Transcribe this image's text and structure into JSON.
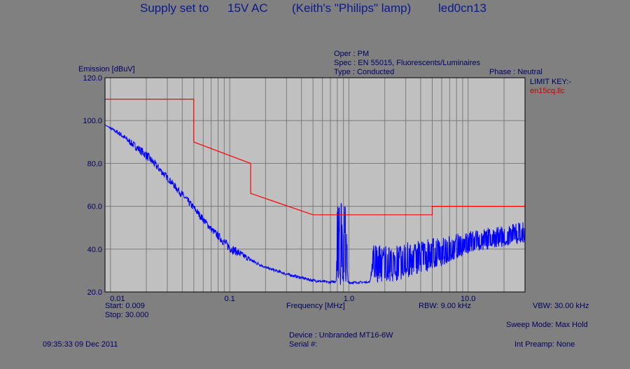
{
  "title_parts": [
    "Supply set to",
    "15V AC",
    "(Keith's \"Philips\" lamp)",
    "led0cn13"
  ],
  "oper": "Oper : PM",
  "spec": "Spec : EN 55015, Fluorescents/Luminaires",
  "type": "Type : Conducted",
  "phase": "Phase : Neutral",
  "limit_key_label": "LIMIT KEY:-",
  "limit_key_file": "en15cq.llc",
  "start": "Start: 0.009",
  "stop": "Stop: 30.000",
  "rbw": "RBW: 9.00 kHz",
  "vbw": "VBW: 30.00 kHz",
  "sweep_mode": "Sweep Mode: Max Hold",
  "device": "Device : Unbranded MT16-6W",
  "serial": "Serial #:",
  "timestamp": "09:35:33 09 Dec 2011",
  "int_preamp": "Int Preamp: None",
  "colors": {
    "background": "#808080",
    "plot_bg": "#c0c0c0",
    "limit": "#ff0000",
    "trace": "#0000ff",
    "text": "#000060"
  },
  "chart_data": {
    "type": "line",
    "xlabel": "Frequency [MHz]",
    "ylabel": "Emission [dBuV]",
    "x_scale": "log",
    "xlim": [
      0.009,
      30
    ],
    "ylim": [
      20,
      120
    ],
    "grid": true,
    "x_tick_labels": [
      "0.01",
      "0.1",
      "1.0",
      "10.0"
    ],
    "x_ticks": [
      0.01,
      0.1,
      1,
      10
    ],
    "y_tick_labels": [
      "120.0",
      "100.0",
      "80.0",
      "60.0",
      "40.0",
      "20.0"
    ],
    "y_ticks": [
      120,
      100,
      80,
      60,
      40,
      20
    ],
    "series": [
      {
        "name": "en15cq.llc",
        "role": "limit",
        "points": [
          [
            0.009,
            110
          ],
          [
            0.05,
            110
          ],
          [
            0.05,
            90
          ],
          [
            0.15,
            80
          ],
          [
            0.15,
            66
          ],
          [
            0.5,
            56
          ],
          [
            5,
            56
          ],
          [
            5,
            60
          ],
          [
            30,
            60
          ]
        ]
      },
      {
        "role": "emission",
        "envelope": [
          [
            0.009,
            98
          ],
          [
            0.012,
            95
          ],
          [
            0.02,
            86
          ],
          [
            0.03,
            75
          ],
          [
            0.05,
            61
          ],
          [
            0.07,
            51
          ],
          [
            0.1,
            43
          ],
          [
            0.15,
            36
          ],
          [
            0.2,
            32
          ],
          [
            0.3,
            29
          ],
          [
            0.5,
            26
          ],
          [
            0.7,
            25
          ],
          [
            0.78,
            26
          ],
          [
            0.8,
            62
          ],
          [
            0.95,
            62
          ],
          [
            0.98,
            25
          ],
          [
            1.5,
            25
          ],
          [
            1.6,
            42
          ],
          [
            2.5,
            42
          ],
          [
            3,
            43
          ],
          [
            4,
            44
          ],
          [
            5,
            45
          ],
          [
            7,
            47
          ],
          [
            10,
            49
          ],
          [
            15,
            50
          ],
          [
            20,
            51
          ],
          [
            30,
            53
          ]
        ],
        "floor": [
          [
            0.009,
            98
          ],
          [
            0.03,
            70
          ],
          [
            0.1,
            36
          ],
          [
            0.3,
            27
          ],
          [
            0.5,
            24
          ],
          [
            1.0,
            23
          ],
          [
            1.6,
            24
          ],
          [
            2.5,
            25
          ],
          [
            5,
            30
          ],
          [
            10,
            38
          ],
          [
            30,
            43
          ]
        ]
      }
    ]
  }
}
